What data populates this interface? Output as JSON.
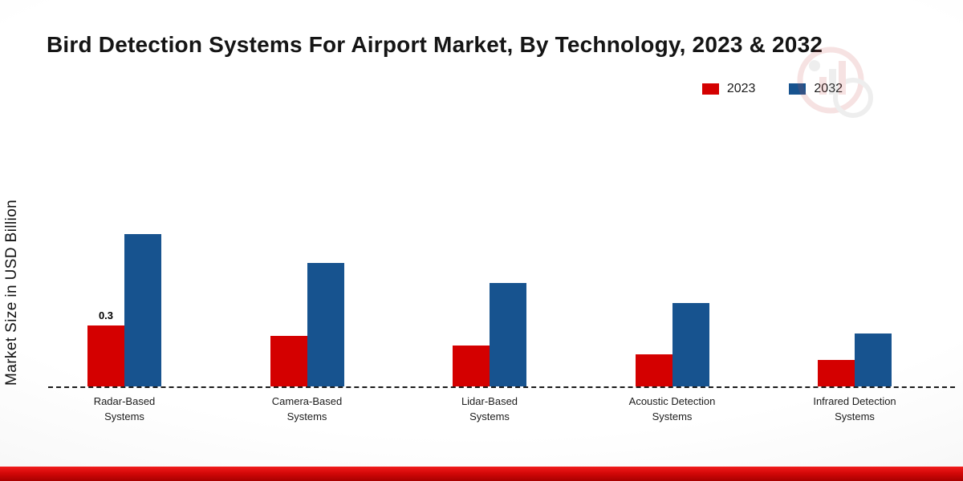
{
  "title": "Bird Detection Systems For Airport Market, By Technology, 2023 & 2032",
  "y_axis_label": "Market Size in USD Billion",
  "legend": {
    "items": [
      {
        "label": "2023",
        "color": "#d40000"
      },
      {
        "label": "2032",
        "color": "#17538f"
      }
    ]
  },
  "colors": {
    "series_2023": "#d40000",
    "series_2032": "#17538f",
    "bottom_band": "#d40808",
    "axis_line": "#1c1c1c"
  },
  "chart_data": {
    "type": "bar",
    "title": "Bird Detection Systems For Airport Market, By Technology, 2023 & 2032",
    "xlabel": "",
    "ylabel": "Market Size in USD Billion",
    "categories": [
      "Radar-Based Systems",
      "Camera-Based Systems",
      "Lidar-Based Systems",
      "Acoustic Detection Systems",
      "Infrared Detection Systems"
    ],
    "series": [
      {
        "name": "2023",
        "color": "#d40000",
        "values": [
          0.3,
          0.25,
          0.2,
          0.16,
          0.13
        ]
      },
      {
        "name": "2032",
        "color": "#17538f",
        "values": [
          0.75,
          0.61,
          0.51,
          0.41,
          0.26
        ]
      }
    ],
    "annotations": [
      {
        "series": "2023",
        "category_index": 0,
        "text": "0.3"
      }
    ],
    "ylim": [
      0,
      0.8
    ],
    "grid": false,
    "legend_position": "top-right",
    "baseline_style": "dashed"
  }
}
